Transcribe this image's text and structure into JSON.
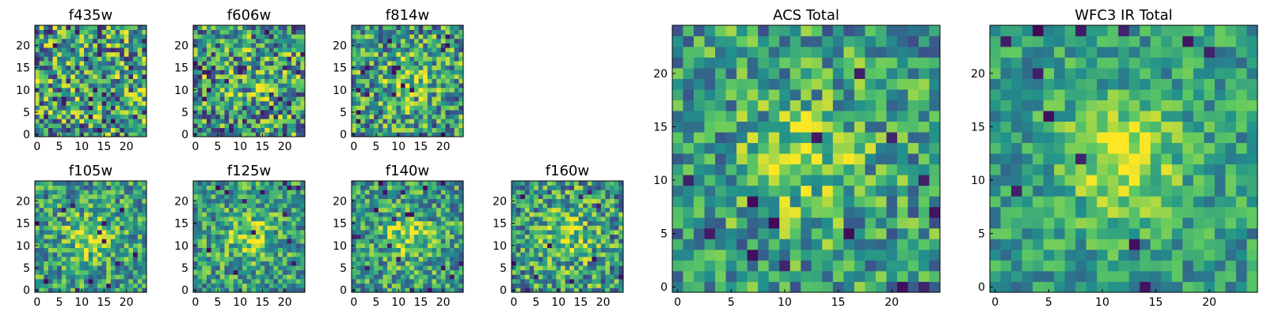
{
  "figure": {
    "colormap": "viridis",
    "colors": {
      "low": "#440154",
      "mid_low": "#31688e",
      "mid": "#35b779",
      "high": "#fde725",
      "frame": "#000000",
      "background": "#ffffff"
    }
  },
  "panels": [
    {
      "id": "f435w",
      "title": "f435w",
      "size": 25,
      "hotspot": 0.0,
      "noise": 1.0,
      "seed": 11,
      "xticks": [
        0,
        5,
        10,
        15,
        20
      ],
      "yticks": [
        0,
        5,
        10,
        15,
        20
      ]
    },
    {
      "id": "f606w",
      "title": "f606w",
      "size": 25,
      "hotspot": 0.25,
      "noise": 0.95,
      "seed": 23,
      "xticks": [
        0,
        5,
        10,
        15,
        20
      ],
      "yticks": [
        0,
        5,
        10,
        15,
        20
      ]
    },
    {
      "id": "f814w",
      "title": "f814w",
      "size": 25,
      "hotspot": 0.45,
      "noise": 0.85,
      "seed": 37,
      "xticks": [
        0,
        5,
        10,
        15,
        20
      ],
      "yticks": [
        0,
        5,
        10,
        15,
        20
      ]
    },
    {
      "id": "f105w",
      "title": "f105w",
      "size": 25,
      "hotspot": 0.6,
      "noise": 0.7,
      "seed": 41,
      "xticks": [
        0,
        5,
        10,
        15,
        20
      ],
      "yticks": [
        0,
        5,
        10,
        15,
        20
      ]
    },
    {
      "id": "f125w",
      "title": "f125w",
      "size": 25,
      "hotspot": 0.6,
      "noise": 0.7,
      "seed": 53,
      "xticks": [
        0,
        5,
        10,
        15,
        20
      ],
      "yticks": [
        0,
        5,
        10,
        15,
        20
      ]
    },
    {
      "id": "f140w",
      "title": "f140w",
      "size": 25,
      "hotspot": 0.65,
      "noise": 0.7,
      "seed": 67,
      "xticks": [
        0,
        5,
        10,
        15,
        20
      ],
      "yticks": [
        0,
        5,
        10,
        15,
        20
      ]
    },
    {
      "id": "f160w",
      "title": "f160w",
      "size": 25,
      "hotspot": 0.55,
      "noise": 0.8,
      "seed": 79,
      "xticks": [
        0,
        5,
        10,
        15,
        20
      ],
      "yticks": [
        0,
        5,
        10,
        15,
        20
      ]
    },
    {
      "id": "acs_total",
      "title": "ACS Total",
      "size": 25,
      "hotspot": 0.6,
      "noise": 0.7,
      "seed": 83,
      "xticks": [
        0,
        5,
        10,
        15,
        20
      ],
      "yticks": [
        0,
        5,
        10,
        15,
        20
      ]
    },
    {
      "id": "wfc3_ir_total",
      "title": "WFC3 IR Total",
      "size": 25,
      "hotspot": 0.8,
      "noise": 0.5,
      "seed": 97,
      "xticks": [
        0,
        5,
        10,
        15,
        20
      ],
      "yticks": [
        0,
        5,
        10,
        15,
        20
      ]
    }
  ]
}
